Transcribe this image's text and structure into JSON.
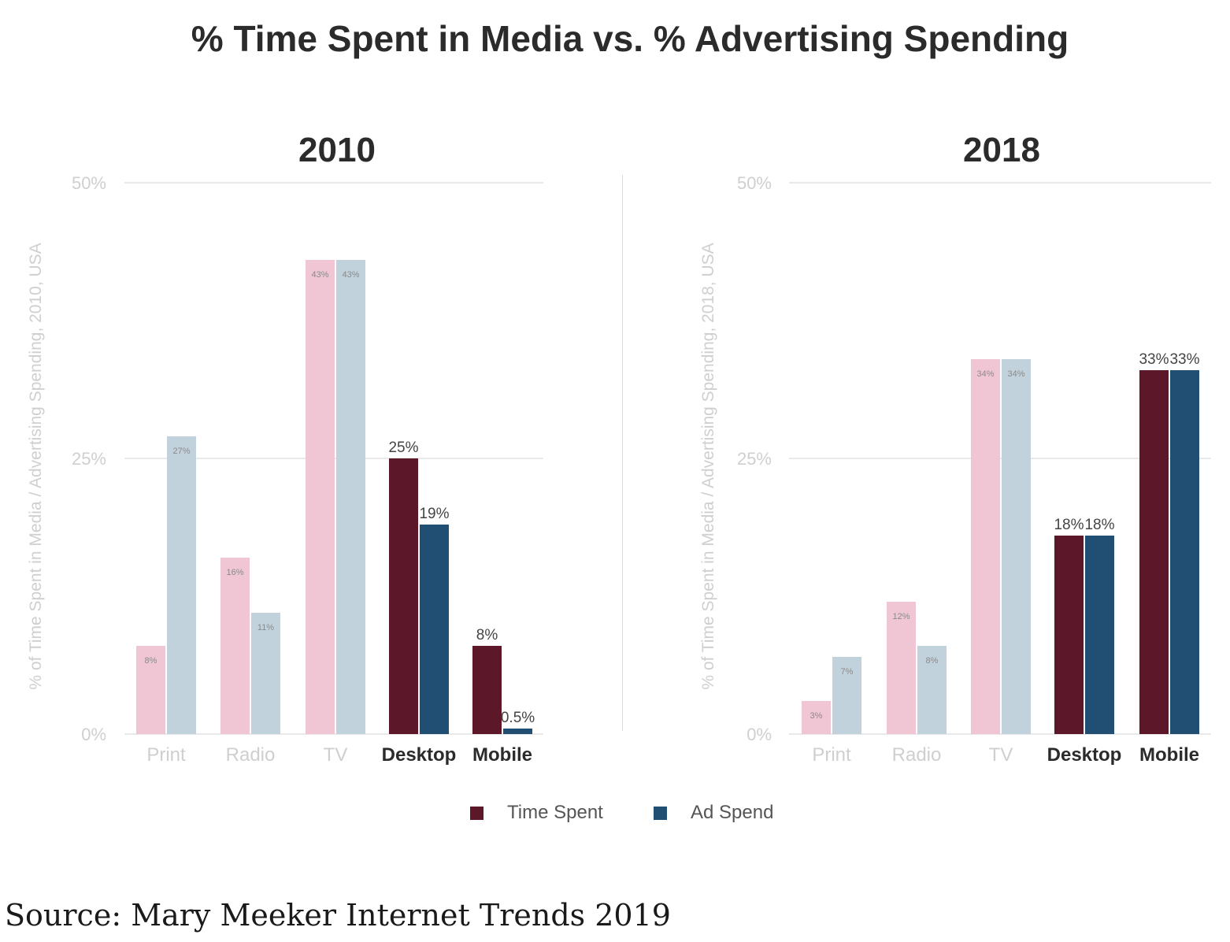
{
  "title": "% Time Spent in Media vs. % Advertising Spending",
  "legend": {
    "time_spent": "Time Spent",
    "ad_spend": "Ad Spend"
  },
  "source": "Source: Mary Meeker Internet Trends 2019",
  "colors": {
    "traditional_time": "#f0c6d4",
    "traditional_ad": "#c1d2dd",
    "digital_time": "#5c1728",
    "digital_ad": "#204f73",
    "grid": "#dcdcdc",
    "muted_text": "#cfcfcf",
    "dark_text": "#2b2b2b"
  },
  "chart_data": [
    {
      "type": "bar",
      "title": "2010",
      "ylabel": "% of Time Spent in Media / Advertising Spending, 2010, USA",
      "yticks": [
        "0%",
        "25%",
        "50%"
      ],
      "ylim": [
        0,
        50
      ],
      "grid": true,
      "categories": [
        "Print",
        "Radio",
        "TV",
        "Desktop",
        "Mobile"
      ],
      "series": [
        {
          "name": "Time Spent",
          "values": [
            8,
            16,
            43,
            25,
            8
          ],
          "labels": [
            "8%",
            "16%",
            "43%",
            "25%",
            "8%"
          ]
        },
        {
          "name": "Ad Spend",
          "values": [
            27,
            11,
            43,
            19,
            0.5
          ],
          "labels": [
            "27%",
            "11%",
            "43%",
            "19%",
            "0.5%"
          ]
        }
      ],
      "emphasized_categories": [
        "Desktop",
        "Mobile"
      ]
    },
    {
      "type": "bar",
      "title": "2018",
      "ylabel": "% of Time Spent in Media / Advertising Spending, 2018, USA",
      "yticks": [
        "0%",
        "25%",
        "50%"
      ],
      "ylim": [
        0,
        50
      ],
      "grid": true,
      "categories": [
        "Print",
        "Radio",
        "TV",
        "Desktop",
        "Mobile"
      ],
      "series": [
        {
          "name": "Time Spent",
          "values": [
            3,
            12,
            34,
            18,
            33
          ],
          "labels": [
            "3%",
            "12%",
            "34%",
            "18%",
            "33%"
          ]
        },
        {
          "name": "Ad Spend",
          "values": [
            7,
            8,
            34,
            18,
            33
          ],
          "labels": [
            "7%",
            "8%",
            "34%",
            "18%",
            "33%"
          ]
        }
      ],
      "emphasized_categories": [
        "Desktop",
        "Mobile"
      ]
    }
  ]
}
